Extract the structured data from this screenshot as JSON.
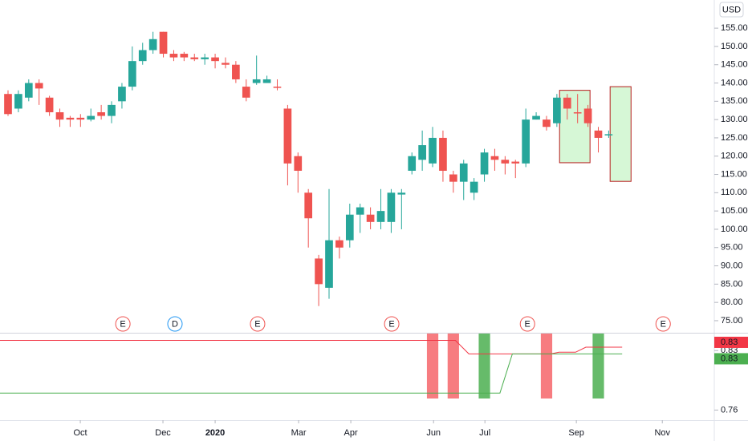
{
  "chart_data": {
    "type": "candlestick",
    "currency": "USD",
    "up_color": "#26a69a",
    "down_color": "#ef5350",
    "x": [
      0,
      1,
      2,
      3,
      4,
      5,
      6,
      7,
      8,
      9,
      10,
      11,
      12,
      13,
      14,
      15,
      16,
      17,
      18,
      19,
      20,
      21,
      22,
      23,
      24,
      25,
      26,
      27,
      28,
      29,
      30,
      31,
      32,
      33,
      34,
      35,
      36,
      37,
      38,
      39,
      40,
      41,
      42,
      43,
      44,
      45,
      46,
      47,
      48,
      49,
      50,
      51,
      52,
      53,
      54,
      55,
      56,
      57,
      58
    ],
    "open": [
      137,
      133,
      136,
      140,
      136,
      132,
      130.5,
      130.5,
      130,
      132,
      131,
      135,
      139,
      146,
      149,
      154,
      148,
      148,
      147,
      146.5,
      147,
      145.5,
      145,
      139,
      140,
      140,
      139,
      133,
      120,
      110,
      92,
      84,
      97,
      97,
      104,
      104,
      102,
      102,
      109.5,
      116,
      119,
      118,
      125,
      115,
      113,
      110,
      115,
      120,
      119,
      118.5,
      118,
      130,
      130,
      129,
      136,
      132,
      133,
      127,
      126
    ],
    "high": [
      138,
      138,
      141,
      141,
      136.5,
      133,
      131,
      131.5,
      133,
      134,
      135,
      140,
      150,
      151,
      154,
      154,
      149,
      148.5,
      148,
      148,
      148,
      147,
      146,
      141,
      147.5,
      142,
      141,
      134,
      121,
      111,
      93,
      111,
      98,
      107,
      107,
      106,
      111,
      111,
      111,
      121,
      127,
      128,
      127,
      116,
      119,
      114,
      122,
      122,
      120,
      119,
      133,
      132,
      131,
      137,
      137,
      137,
      134,
      128,
      127
    ],
    "low": [
      131,
      132,
      135,
      134,
      131,
      128,
      128,
      128,
      129.5,
      130,
      129,
      133,
      138,
      145,
      148,
      147,
      146,
      146,
      146,
      145,
      144,
      144,
      140,
      135,
      139.5,
      140,
      138,
      112,
      110,
      95,
      79,
      81,
      92,
      95,
      99,
      100,
      100,
      99,
      100,
      115,
      116,
      117,
      113,
      110,
      108,
      108,
      113,
      116,
      115,
      114,
      117,
      130,
      127,
      128,
      130,
      129,
      128,
      121,
      125
    ],
    "close": [
      131.5,
      137,
      140,
      138.5,
      132,
      130,
      130,
      130,
      131,
      131,
      134,
      139,
      146,
      149,
      152,
      148,
      147,
      147,
      146.5,
      147,
      146,
      145,
      141,
      136,
      141,
      141,
      138.8,
      118,
      116,
      103,
      85,
      97,
      95,
      104,
      106,
      102,
      105,
      110,
      110,
      120,
      123,
      125,
      116,
      113,
      118,
      113,
      121,
      119,
      118,
      118,
      130,
      131,
      128,
      136,
      133,
      131.8,
      129,
      125,
      126
    ],
    "xlim": [
      -0.775,
      68.2
    ],
    "xticks": [
      {
        "value": 6.98,
        "label": "Oct"
      },
      {
        "value": 14.96,
        "label": "Dec"
      },
      {
        "value": 20,
        "label": "2020"
      },
      {
        "value": 28.06,
        "label": "Mar"
      },
      {
        "value": 33.1,
        "label": "Apr"
      },
      {
        "value": 41.09,
        "label": "Jun"
      },
      {
        "value": 46.05,
        "label": "Jul"
      },
      {
        "value": 54.88,
        "label": "Sep"
      },
      {
        "value": 63.18,
        "label": "Nov"
      }
    ],
    "ylim": [
      71.7,
      162.7
    ],
    "yticks": [
      {
        "value": 75,
        "label": "75.00"
      },
      {
        "value": 80,
        "label": "80.00"
      },
      {
        "value": 85,
        "label": "85.00"
      },
      {
        "value": 90,
        "label": "90.00"
      },
      {
        "value": 95,
        "label": "95.00"
      },
      {
        "value": 100,
        "label": "100.00"
      },
      {
        "value": 105,
        "label": "105.00"
      },
      {
        "value": 110,
        "label": "110.00"
      },
      {
        "value": 115,
        "label": "115.00"
      },
      {
        "value": 120,
        "label": "120.00"
      },
      {
        "value": 125,
        "label": "125.00"
      },
      {
        "value": 130,
        "label": "130.00"
      },
      {
        "value": 135,
        "label": "135.00"
      },
      {
        "value": 140,
        "label": "140.00"
      },
      {
        "value": 145,
        "label": "145.00"
      },
      {
        "value": 150,
        "label": "150.00"
      },
      {
        "value": 155,
        "label": "155.00"
      }
    ],
    "zones": [
      {
        "x0": 53.26,
        "x1": 56.2,
        "top": 138,
        "bottom": 118.2
      },
      {
        "x0": 58.14,
        "x1": 60.16,
        "top": 139,
        "bottom": 113.1
      }
    ],
    "events": [
      {
        "x": 11.09,
        "label": "E",
        "color": "#ef5350"
      },
      {
        "x": 16.12,
        "label": "D",
        "color": "#2196f3"
      },
      {
        "x": 24.1,
        "label": "E",
        "color": "#ef5350"
      },
      {
        "x": 37.05,
        "label": "E",
        "color": "#ef5350"
      },
      {
        "x": 50.16,
        "label": "E",
        "color": "#ef5350"
      },
      {
        "x": 63.26,
        "label": "E",
        "color": "#ef5350"
      }
    ],
    "indicator": {
      "ylim": [
        0.75,
        0.85
      ],
      "yticks": [
        0.84,
        0.83,
        0.76
      ],
      "signals": [
        {
          "x": 41,
          "color": "#f77c80"
        },
        {
          "x": 43,
          "color": "#f77c80"
        },
        {
          "x": 46,
          "color": "#66bb6a"
        },
        {
          "x": 52,
          "color": "#f77c80"
        },
        {
          "x": 57,
          "color": "#66bb6a"
        }
      ],
      "series": [
        {
          "color": "#f23645",
          "x": [
            -0.775,
            43.2,
            44.5,
            52.4,
            53.2,
            54.8,
            55.8,
            59.3
          ],
          "values": [
            0.842,
            0.842,
            0.826,
            0.826,
            0.828,
            0.828,
            0.834,
            0.834
          ],
          "last_label": "0.83"
        },
        {
          "color": "#4caf50",
          "x": [
            -0.775,
            47.5,
            48.7,
            59.3
          ],
          "values": [
            0.78,
            0.78,
            0.826,
            0.826
          ],
          "last_label": "0.83"
        }
      ]
    }
  }
}
